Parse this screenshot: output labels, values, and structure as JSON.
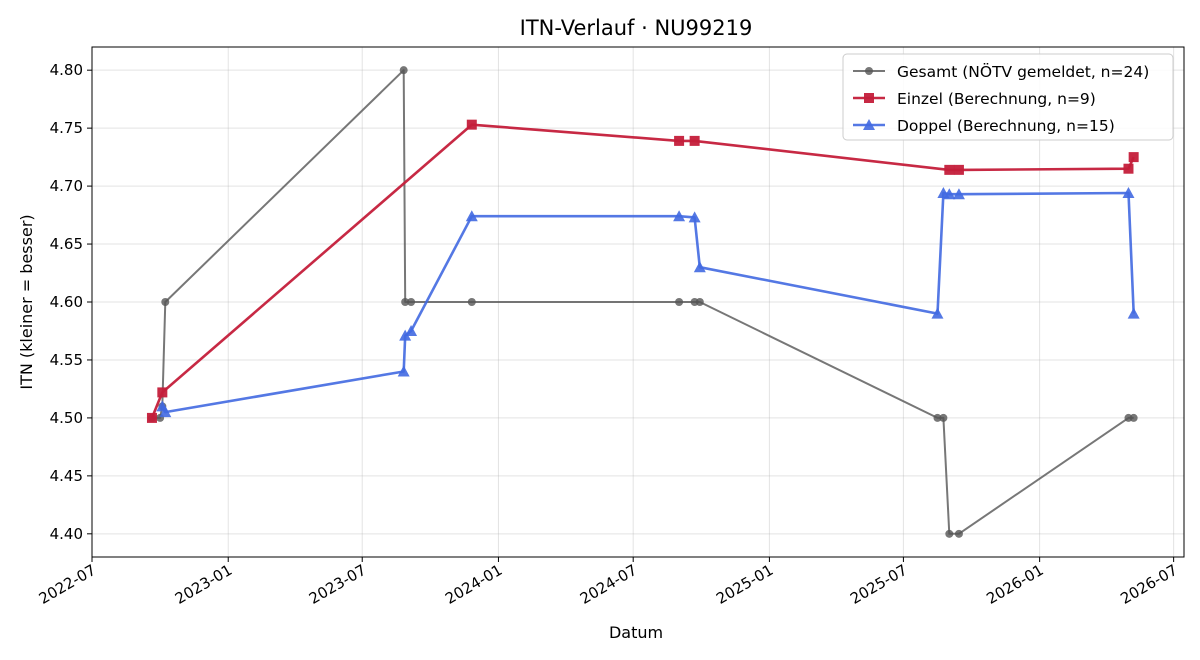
{
  "chart_data": {
    "type": "line",
    "title": "ITN-Verlauf · NU99219",
    "xlabel": "Datum",
    "ylabel": "ITN  (kleiner = besser)",
    "x_range": [
      "2022-07-01",
      "2026-07-15"
    ],
    "ylim": [
      4.38,
      4.82
    ],
    "x_ticks": [
      "2022-07",
      "2023-01",
      "2023-07",
      "2024-01",
      "2024-07",
      "2025-01",
      "2025-07",
      "2026-01",
      "2026-07"
    ],
    "y_ticks": [
      "4.40",
      "4.45",
      "4.50",
      "4.55",
      "4.60",
      "4.65",
      "4.70",
      "4.75",
      "4.80"
    ],
    "grid": true,
    "legend": "top-right",
    "series": [
      {
        "name": "Gesamt (NÖTV gemeldet, n=24)",
        "color": "#555555",
        "marker": "circle",
        "points": [
          [
            "2022-09-20",
            4.5
          ],
          [
            "2022-10-01",
            4.5
          ],
          [
            "2022-10-04",
            4.51
          ],
          [
            "2022-10-08",
            4.6
          ],
          [
            "2023-08-26",
            4.8
          ],
          [
            "2023-08-28",
            4.6
          ],
          [
            "2023-09-05",
            4.6
          ],
          [
            "2023-11-26",
            4.6
          ],
          [
            "2024-09-01",
            4.6
          ],
          [
            "2024-09-22",
            4.6
          ],
          [
            "2024-09-29",
            4.6
          ],
          [
            "2025-08-16",
            4.5
          ],
          [
            "2025-08-24",
            4.5
          ],
          [
            "2025-09-01",
            4.4
          ],
          [
            "2025-09-14",
            4.4
          ],
          [
            "2026-05-01",
            4.5
          ],
          [
            "2026-05-08",
            4.5
          ]
        ]
      },
      {
        "name": "Einzel (Berechnung, n=9)",
        "color": "#C41E3A",
        "marker": "square",
        "points": [
          [
            "2022-09-20",
            4.5
          ],
          [
            "2022-10-04",
            4.522
          ],
          [
            "2023-11-26",
            4.753
          ],
          [
            "2024-09-01",
            4.739
          ],
          [
            "2024-09-22",
            4.739
          ],
          [
            "2025-09-01",
            4.714
          ],
          [
            "2025-09-14",
            4.714
          ],
          [
            "2026-05-01",
            4.715
          ],
          [
            "2026-05-08",
            4.725
          ]
        ]
      },
      {
        "name": "Doppel (Berechnung, n=15)",
        "color": "#4169E1",
        "marker": "triangle",
        "points": [
          [
            "2022-10-04",
            4.51
          ],
          [
            "2022-10-08",
            4.505
          ],
          [
            "2023-08-26",
            4.54
          ],
          [
            "2023-08-28",
            4.571
          ],
          [
            "2023-09-05",
            4.575
          ],
          [
            "2023-11-26",
            4.674
          ],
          [
            "2024-09-01",
            4.674
          ],
          [
            "2024-09-22",
            4.673
          ],
          [
            "2024-09-29",
            4.63
          ],
          [
            "2025-08-16",
            4.59
          ],
          [
            "2025-08-24",
            4.694
          ],
          [
            "2025-09-01",
            4.693
          ],
          [
            "2025-09-14",
            4.693
          ],
          [
            "2026-05-01",
            4.694
          ],
          [
            "2026-05-08",
            4.59
          ]
        ]
      }
    ]
  }
}
